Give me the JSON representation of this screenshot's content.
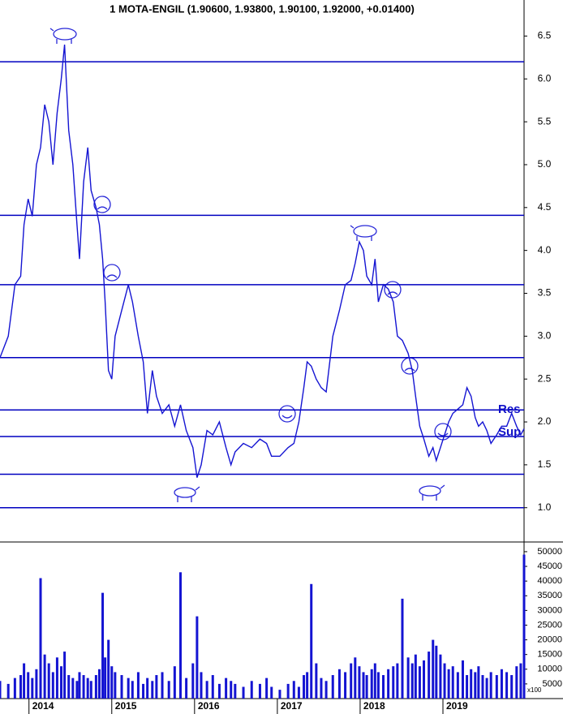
{
  "chart_data": [
    {
      "type": "line",
      "title": "1 MOTA-ENGIL (1.90600, 1.93800, 1.90100, 1.92000, +0.01400)",
      "x": [
        2013.65,
        2013.75,
        2013.83,
        2013.9,
        2013.94,
        2013.99,
        2014.04,
        2014.09,
        2014.14,
        2014.19,
        2014.24,
        2014.29,
        2014.34,
        2014.39,
        2014.43,
        2014.48,
        2014.53,
        2014.58,
        2014.61,
        2014.66,
        2014.71,
        2014.75,
        2014.81,
        2014.85,
        2014.89,
        2014.92,
        2014.96,
        2015.0,
        2015.04,
        2015.12,
        2015.2,
        2015.25,
        2015.32,
        2015.38,
        2015.43,
        2015.49,
        2015.54,
        2015.61,
        2015.69,
        2015.76,
        2015.83,
        2015.9,
        2015.98,
        2016.03,
        2016.08,
        2016.15,
        2016.22,
        2016.3,
        2016.38,
        2016.44,
        2016.49,
        2016.59,
        2016.69,
        2016.79,
        2016.87,
        2016.93,
        2017.03,
        2017.13,
        2017.2,
        2017.26,
        2017.32,
        2017.36,
        2017.41,
        2017.47,
        2017.53,
        2017.59,
        2017.67,
        2017.75,
        2017.82,
        2017.89,
        2017.94,
        2017.99,
        2018.04,
        2018.08,
        2018.14,
        2018.18,
        2018.22,
        2018.28,
        2018.34,
        2018.4,
        2018.45,
        2018.51,
        2018.58,
        2018.63,
        2018.67,
        2018.72,
        2018.77,
        2018.83,
        2018.88,
        2018.92,
        2018.97,
        2019.02,
        2019.07,
        2019.12,
        2019.18,
        2019.24,
        2019.29,
        2019.34,
        2019.39,
        2019.43,
        2019.48,
        2019.53,
        2019.58,
        2019.65,
        2019.71,
        2019.77,
        2019.83,
        2019.89,
        2019.94,
        2019.98
      ],
      "series": [
        {
          "color": "#1414d2",
          "values": [
            2.75,
            3.0,
            3.6,
            3.7,
            4.3,
            4.6,
            4.4,
            5.0,
            5.2,
            5.7,
            5.5,
            5.0,
            5.6,
            6.0,
            6.4,
            5.4,
            5.0,
            4.3,
            3.9,
            4.8,
            5.2,
            4.7,
            4.5,
            4.3,
            3.9,
            3.4,
            2.6,
            2.5,
            3.0,
            3.3,
            3.6,
            3.4,
            3.0,
            2.7,
            2.1,
            2.6,
            2.3,
            2.1,
            2.2,
            1.95,
            2.2,
            1.9,
            1.7,
            1.35,
            1.5,
            1.9,
            1.85,
            2.0,
            1.7,
            1.5,
            1.65,
            1.75,
            1.7,
            1.8,
            1.75,
            1.6,
            1.6,
            1.7,
            1.75,
            2.0,
            2.4,
            2.7,
            2.65,
            2.5,
            2.4,
            2.35,
            3.0,
            3.3,
            3.6,
            3.65,
            3.85,
            4.1,
            4.0,
            3.7,
            3.6,
            3.9,
            3.4,
            3.6,
            3.55,
            3.4,
            3.0,
            2.95,
            2.8,
            2.6,
            2.3,
            1.95,
            1.8,
            1.6,
            1.7,
            1.55,
            1.7,
            1.85,
            2.0,
            2.1,
            2.15,
            2.2,
            2.4,
            2.3,
            2.05,
            1.95,
            2.0,
            1.9,
            1.75,
            1.85,
            1.95,
            1.95,
            2.1,
            1.95,
            1.85,
            1.92
          ]
        }
      ],
      "xlim": [
        2013.65,
        2019.98
      ],
      "ylim": [
        0.6,
        6.75
      ],
      "yticks": [
        {
          "value": 1,
          "label": "1.0"
        },
        1.5,
        {
          "value": 2,
          "label": "2.0"
        },
        2.5,
        {
          "value": 3,
          "label": "3.0"
        },
        3.5,
        {
          "value": 4,
          "label": "4.0"
        },
        4.5,
        {
          "value": 5,
          "label": "5.0"
        },
        5.5,
        {
          "value": 6,
          "label": "6.0"
        },
        6.5
      ],
      "hlines": [
        6.2,
        4.41,
        3.6,
        2.75,
        2.14,
        1.83,
        1.39,
        1.0
      ],
      "hline_color": "#0000c0",
      "annotations": [
        "Res",
        "Sup"
      ]
    },
    {
      "type": "bar",
      "x": [
        2013.65,
        2013.75,
        2013.83,
        2013.9,
        2013.94,
        2013.99,
        2014.04,
        2014.09,
        2014.14,
        2014.19,
        2014.24,
        2014.29,
        2014.34,
        2014.39,
        2014.43,
        2014.48,
        2014.53,
        2014.58,
        2014.61,
        2014.66,
        2014.71,
        2014.75,
        2014.81,
        2014.85,
        2014.89,
        2014.92,
        2014.96,
        2015.0,
        2015.04,
        2015.12,
        2015.2,
        2015.25,
        2015.32,
        2015.38,
        2015.43,
        2015.49,
        2015.54,
        2015.61,
        2015.69,
        2015.76,
        2015.83,
        2015.9,
        2015.98,
        2016.03,
        2016.08,
        2016.15,
        2016.22,
        2016.3,
        2016.38,
        2016.44,
        2016.49,
        2016.59,
        2016.69,
        2016.79,
        2016.87,
        2016.93,
        2017.03,
        2017.13,
        2017.2,
        2017.26,
        2017.32,
        2017.36,
        2017.41,
        2017.47,
        2017.53,
        2017.59,
        2017.67,
        2017.75,
        2017.82,
        2017.89,
        2017.94,
        2017.99,
        2018.04,
        2018.08,
        2018.14,
        2018.18,
        2018.22,
        2018.28,
        2018.34,
        2018.4,
        2018.45,
        2018.51,
        2018.58,
        2018.63,
        2018.67,
        2018.72,
        2018.77,
        2018.83,
        2018.88,
        2018.92,
        2018.97,
        2019.02,
        2019.07,
        2019.12,
        2019.18,
        2019.24,
        2019.29,
        2019.34,
        2019.39,
        2019.43,
        2019.48,
        2019.53,
        2019.58,
        2019.65,
        2019.71,
        2019.77,
        2019.83,
        2019.89,
        2019.94,
        2019.98
      ],
      "values": [
        6000,
        5000,
        7000,
        8000,
        12000,
        9000,
        7000,
        10000,
        41000,
        15000,
        12000,
        9000,
        14000,
        11000,
        16000,
        8000,
        7000,
        6000,
        9000,
        8000,
        7000,
        6000,
        8000,
        10000,
        36000,
        14000,
        20000,
        11000,
        9000,
        8000,
        7000,
        6000,
        9000,
        5000,
        7000,
        6000,
        8000,
        9000,
        6000,
        11000,
        43000,
        7000,
        12000,
        28000,
        9000,
        6000,
        8000,
        5000,
        7000,
        6000,
        5000,
        4000,
        6000,
        5000,
        7000,
        4000,
        3000,
        5000,
        6000,
        4000,
        8000,
        9000,
        39000,
        12000,
        7000,
        6000,
        8000,
        10000,
        9000,
        12000,
        14000,
        11000,
        9000,
        8000,
        10000,
        12000,
        9000,
        8000,
        10000,
        11000,
        12000,
        34000,
        14000,
        12000,
        15000,
        11000,
        13000,
        16000,
        20000,
        18000,
        15000,
        12000,
        10000,
        11000,
        9000,
        13000,
        8000,
        10000,
        9000,
        11000,
        8000,
        7000,
        9000,
        8000,
        10000,
        9000,
        8000,
        11000,
        12000,
        49000
      ],
      "color": "#1414d2",
      "xlim": [
        2013.65,
        2019.98
      ],
      "ylim": [
        0,
        53300
      ],
      "yticks": [
        5000,
        10000,
        15000,
        20000,
        25000,
        30000,
        35000,
        40000,
        45000,
        50000
      ],
      "xticks": [
        {
          "value": 2014,
          "label": "2014"
        },
        {
          "value": 2015,
          "label": "2015"
        },
        {
          "value": 2016,
          "label": "2016"
        },
        {
          "value": 2017,
          "label": "2017"
        },
        {
          "value": 2018,
          "label": "2018"
        },
        {
          "value": 2019,
          "label": "2019"
        }
      ],
      "unit_label": "x100"
    }
  ]
}
